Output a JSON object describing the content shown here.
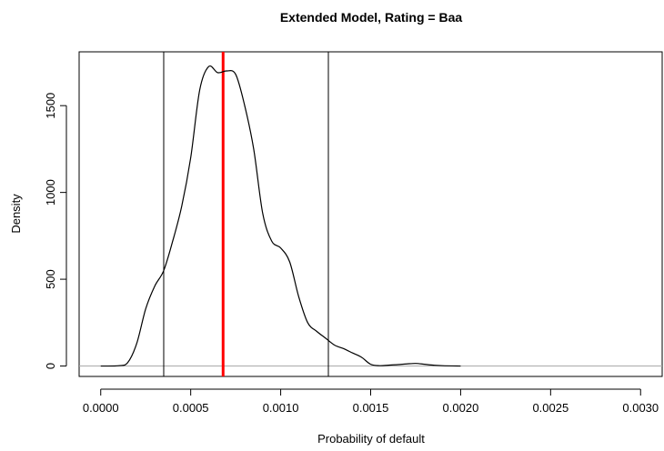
{
  "chart_data": {
    "type": "line",
    "title": "Extended Model, Rating = Baa",
    "xlabel": "Probability of default",
    "ylabel": "Density",
    "xlim": [
      -0.00012,
      0.00312
    ],
    "ylim": [
      -60,
      1810
    ],
    "x_ticks": [
      {
        "value": 0.0,
        "label": "0.0000"
      },
      {
        "value": 0.0005,
        "label": "0.0005"
      },
      {
        "value": 0.001,
        "label": "0.0010"
      },
      {
        "value": 0.0015,
        "label": "0.0015"
      },
      {
        "value": 0.002,
        "label": "0.0020"
      },
      {
        "value": 0.0025,
        "label": "0.0025"
      },
      {
        "value": 0.003,
        "label": "0.0030"
      }
    ],
    "y_ticks": [
      {
        "value": 0,
        "label": "0"
      },
      {
        "value": 500,
        "label": "500"
      },
      {
        "value": 1000,
        "label": "1000"
      },
      {
        "value": 1500,
        "label": "1500"
      }
    ],
    "series": [
      {
        "color": "#000000",
        "x": [
          0.0,
          0.0001,
          0.00015,
          0.0002,
          0.00025,
          0.0003,
          0.00035,
          0.0004,
          0.00045,
          0.0005,
          0.00055,
          0.0006,
          0.00065,
          0.0007,
          0.00075,
          0.0008,
          0.00085,
          0.0009,
          0.00095,
          0.001,
          0.00105,
          0.0011,
          0.00115,
          0.0012,
          0.00125,
          0.0013,
          0.00135,
          0.0014,
          0.00145,
          0.0015,
          0.00155,
          0.0016,
          0.00165,
          0.0017,
          0.00175,
          0.0018,
          0.00185,
          0.0019,
          0.002
        ],
        "y": [
          0,
          2,
          20,
          130,
          330,
          460,
          550,
          720,
          920,
          1200,
          1590,
          1725,
          1690,
          1700,
          1680,
          1500,
          1250,
          880,
          720,
          680,
          600,
          400,
          250,
          200,
          160,
          120,
          100,
          75,
          50,
          10,
          2,
          5,
          8,
          12,
          15,
          10,
          5,
          2,
          0
        ]
      }
    ],
    "reference_lines": {
      "horizontal": [
        {
          "y": 0,
          "color": "#aaaaaa"
        }
      ],
      "vertical": [
        {
          "x": 0.00035,
          "color": "#000000"
        },
        {
          "x": 0.00068,
          "color": "#ff0000"
        },
        {
          "x": 0.001265,
          "color": "#000000"
        }
      ]
    },
    "grid": false,
    "legend": "none"
  }
}
